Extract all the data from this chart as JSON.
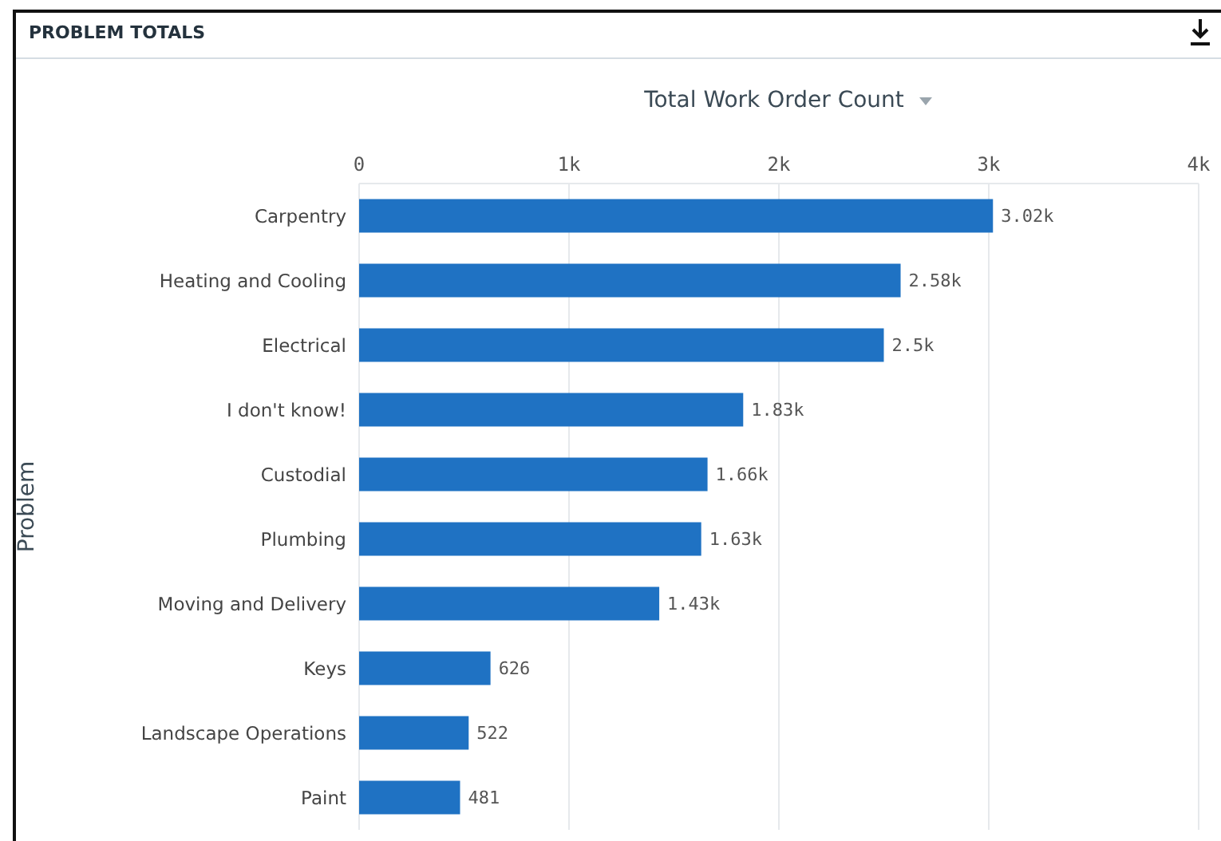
{
  "chart_data": {
    "type": "bar",
    "orientation": "horizontal",
    "title": "PROBLEM TOTALS",
    "xlabel": "Total Work Order Count",
    "ylabel": "Problem",
    "categories": [
      "Carpentry",
      "Heating and Cooling",
      "Electrical",
      "I don't know!",
      "Custodial",
      "Plumbing",
      "Moving and Delivery",
      "Keys",
      "Landscape Operations",
      "Paint"
    ],
    "values": [
      3020,
      2580,
      2500,
      1830,
      1660,
      1630,
      1430,
      626,
      522,
      481
    ],
    "value_labels": [
      "3.02k",
      "2.58k",
      "2.5k",
      "1.83k",
      "1.66k",
      "1.63k",
      "1.43k",
      "626",
      "522",
      "481"
    ],
    "color": "#1f72c3",
    "xlim": [
      0,
      4000
    ],
    "xticks": [
      0,
      {
        "value": 1000,
        "label": "1k"
      },
      {
        "value": 2000,
        "label": "2k"
      },
      {
        "value": 3000,
        "label": "3k"
      },
      {
        "value": 4000,
        "label": "4k"
      }
    ],
    "grid": "x"
  }
}
